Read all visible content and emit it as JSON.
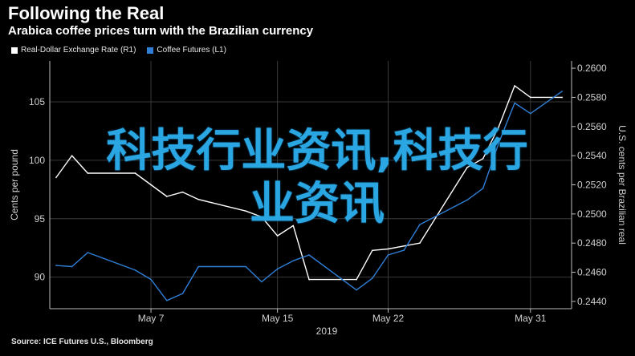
{
  "header": {
    "title": "Following the Real",
    "subtitle": "Arabica coffee prices turn with the Brazilian currency"
  },
  "source": "Source: ICE Futures U.S., Bloomberg",
  "overlay": {
    "line1": "科技行业资讯,科技行",
    "line2": "业资讯"
  },
  "colors": {
    "background": "#000000",
    "real_line": "#ffffff",
    "coffee_line": "#2f7fd6",
    "grid": "#3a3a3a",
    "overlay": "#2aa7e3"
  },
  "chart_data": {
    "type": "line",
    "xlabel": "2019",
    "x_ticks": [
      "May 7",
      "May 15",
      "May 22",
      "May 31"
    ],
    "left_axis": {
      "label": "Cents per pound",
      "ylim": [
        87.3,
        108.5
      ],
      "ticks": [
        "90",
        "95",
        "100",
        "105"
      ]
    },
    "right_axis": {
      "label": "U.S. cents per Brazilian real",
      "ylim": [
        0.2435,
        0.2605
      ],
      "ticks": [
        "0.2440",
        "0.2460",
        "0.2480",
        "0.2500",
        "0.2520",
        "0.2540",
        "0.2560",
        "0.2580",
        "0.2600"
      ]
    },
    "x_days": [
      1,
      2,
      3,
      6,
      7,
      8,
      9,
      10,
      13,
      14,
      15,
      16,
      17,
      20,
      21,
      22,
      23,
      24,
      27,
      28,
      29,
      30,
      31,
      33
    ],
    "series": [
      {
        "name": "Real-Dollar Exchange Rate (R1)",
        "axis": "right",
        "values": [
          0.2525,
          0.254,
          0.2528,
          0.2528,
          0.252,
          0.2512,
          0.2515,
          0.251,
          0.2502,
          0.2498,
          0.2485,
          0.2492,
          0.2455,
          0.2455,
          0.2475,
          0.2476,
          0.2478,
          0.248,
          0.2532,
          0.2538,
          0.256,
          0.2588,
          0.258,
          0.258
        ]
      },
      {
        "name": "Coffee Futures (L1)",
        "axis": "left",
        "values": [
          91.0,
          90.9,
          92.1,
          90.6,
          89.8,
          88.0,
          88.6,
          90.9,
          90.9,
          89.6,
          90.7,
          91.4,
          91.9,
          88.9,
          89.9,
          91.9,
          92.3,
          94.5,
          96.6,
          97.6,
          101.5,
          104.9,
          104.0,
          105.9
        ]
      }
    ]
  }
}
